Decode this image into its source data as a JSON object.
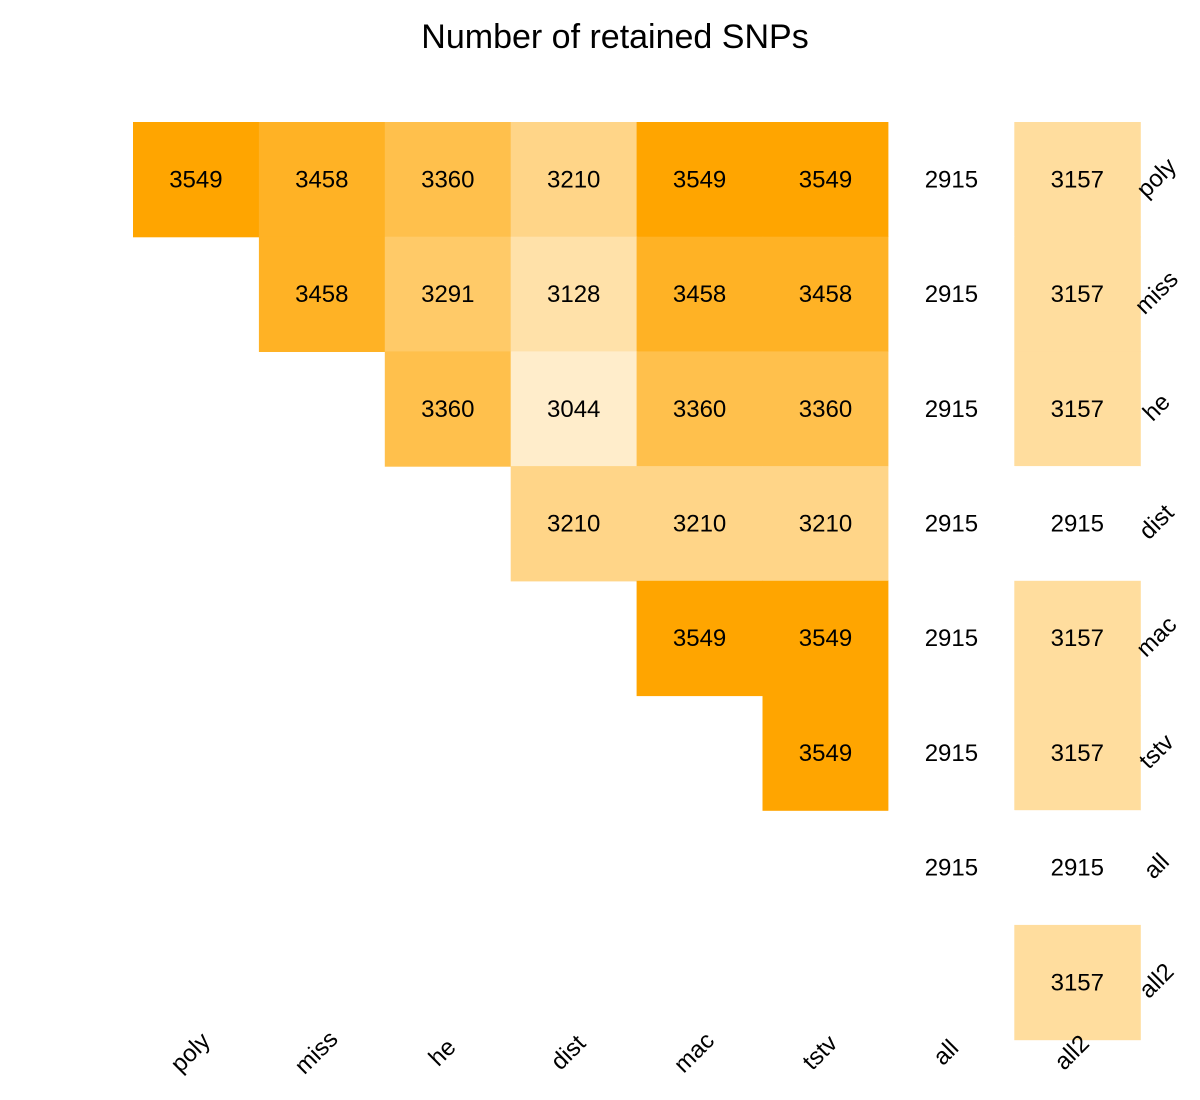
{
  "chart_data": {
    "type": "heatmap",
    "title": "Number of retained SNPs",
    "columns": [
      "poly",
      "miss",
      "he",
      "dist",
      "mac",
      "tstv",
      "all",
      "all2"
    ],
    "rows": [
      "poly",
      "miss",
      "he",
      "dist",
      "mac",
      "tstv",
      "all",
      "all2"
    ],
    "values": [
      [
        3549,
        3458,
        3360,
        3210,
        3549,
        3549,
        2915,
        3157
      ],
      [
        null,
        3458,
        3291,
        3128,
        3458,
        3458,
        2915,
        3157
      ],
      [
        null,
        null,
        3360,
        3044,
        3360,
        3360,
        2915,
        3157
      ],
      [
        null,
        null,
        null,
        3210,
        3210,
        3210,
        2915,
        2915
      ],
      [
        null,
        null,
        null,
        null,
        3549,
        3549,
        2915,
        3157
      ],
      [
        null,
        null,
        null,
        null,
        null,
        3549,
        2915,
        3157
      ],
      [
        null,
        null,
        null,
        null,
        null,
        null,
        2915,
        2915
      ],
      [
        null,
        null,
        null,
        null,
        null,
        null,
        null,
        3157
      ]
    ],
    "color_scale": {
      "low_value": 2915,
      "high_value": 3549,
      "low_color": "#ffffff",
      "high_color": "#ffa500"
    },
    "xlabel": "",
    "ylabel": "",
    "legend": "none",
    "grid": false
  }
}
